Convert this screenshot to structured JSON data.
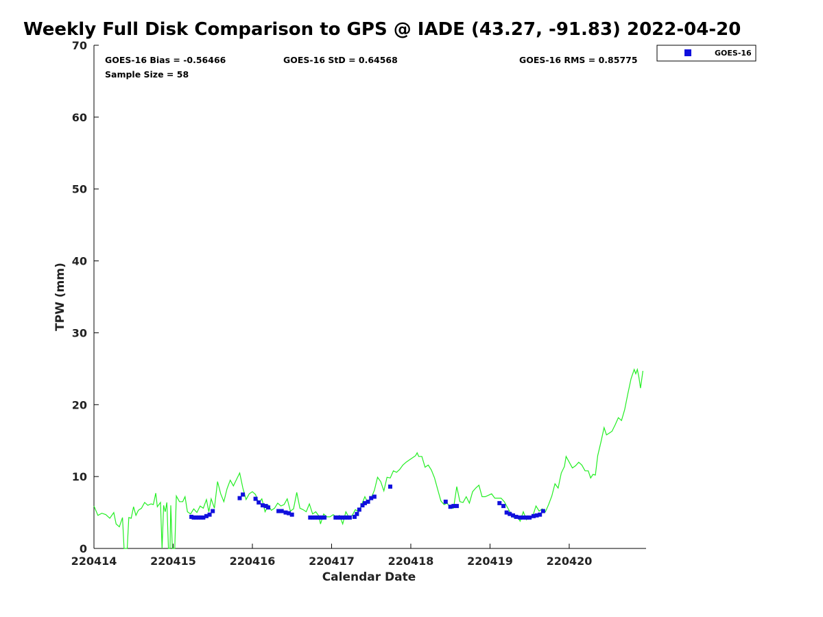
{
  "chart_data": {
    "type": "line",
    "title": "Weekly Full Disk Comparison to GPS @ IADE (43.27, -91.83) 2022-04-20",
    "xlabel": "Calendar Date",
    "ylabel": "TPW (mm)",
    "xlim": [
      220414,
      220421
    ],
    "ylim": [
      0,
      70
    ],
    "x_ticks": [
      220414,
      220415,
      220416,
      220417,
      220418,
      220419,
      220420
    ],
    "x_tick_labels": [
      "220414",
      "220415",
      "220416",
      "220417",
      "220418",
      "220419",
      "220420"
    ],
    "y_ticks": [
      0,
      10,
      20,
      30,
      40,
      50,
      60,
      70
    ],
    "y_tick_labels": [
      "0",
      "10",
      "20",
      "30",
      "40",
      "50",
      "60",
      "70"
    ],
    "grid": false,
    "legend_position": "top-right",
    "stats": {
      "bias": "GOES-16 Bias = -0.56466",
      "std": "GOES-16 StD = 0.64568",
      "rms": "GOES-16 RMS = 0.85775",
      "sample": "Sample Size = 58"
    },
    "colors": {
      "gps_line": "#22ee22",
      "goes_marker": "#1010dd"
    },
    "series": [
      {
        "type": "line",
        "values": [
          [
            220414.0,
            5.9
          ],
          [
            220414.05,
            4.6
          ],
          [
            220414.1,
            4.9
          ],
          [
            220414.15,
            4.7
          ],
          [
            220414.2,
            4.2
          ],
          [
            220414.25,
            5.0
          ],
          [
            220414.28,
            3.4
          ],
          [
            220414.32,
            3.0
          ],
          [
            220414.36,
            4.3
          ],
          [
            220414.38,
            0
          ],
          [
            220414.42,
            0
          ],
          [
            220414.44,
            4.3
          ],
          [
            220414.47,
            4.2
          ],
          [
            220414.5,
            5.8
          ],
          [
            220414.53,
            4.6
          ],
          [
            220414.56,
            5.3
          ],
          [
            220414.6,
            5.6
          ],
          [
            220414.64,
            6.4
          ],
          [
            220414.68,
            6.0
          ],
          [
            220414.72,
            6.2
          ],
          [
            220414.75,
            6.1
          ],
          [
            220414.78,
            7.7
          ],
          [
            220414.8,
            5.8
          ],
          [
            220414.84,
            6.4
          ],
          [
            220414.86,
            0
          ],
          [
            220414.88,
            6.0
          ],
          [
            220414.9,
            5.1
          ],
          [
            220414.92,
            6.4
          ],
          [
            220414.94,
            0
          ],
          [
            220414.96,
            0
          ],
          [
            220414.97,
            6.0
          ],
          [
            220414.99,
            0
          ],
          [
            220415.02,
            0
          ],
          [
            220415.04,
            7.3
          ],
          [
            220415.08,
            6.5
          ],
          [
            220415.12,
            6.5
          ],
          [
            220415.15,
            7.2
          ],
          [
            220415.18,
            5.1
          ],
          [
            220415.22,
            4.8
          ],
          [
            220415.26,
            5.5
          ],
          [
            220415.3,
            5.0
          ],
          [
            220415.34,
            5.9
          ],
          [
            220415.38,
            5.6
          ],
          [
            220415.42,
            6.8
          ],
          [
            220415.45,
            5.1
          ],
          [
            220415.48,
            6.9
          ],
          [
            220415.52,
            5.6
          ],
          [
            220415.56,
            9.3
          ],
          [
            220415.6,
            7.6
          ],
          [
            220415.64,
            6.5
          ],
          [
            220415.68,
            8.3
          ],
          [
            220415.72,
            9.5
          ],
          [
            220415.76,
            8.7
          ],
          [
            220415.8,
            9.6
          ],
          [
            220415.84,
            10.5
          ],
          [
            220415.88,
            8.4
          ],
          [
            220415.92,
            6.8
          ],
          [
            220415.96,
            7.6
          ],
          [
            220416.0,
            7.9
          ],
          [
            220416.04,
            7.5
          ],
          [
            220416.08,
            6.3
          ],
          [
            220416.12,
            6.9
          ],
          [
            220416.16,
            5.1
          ],
          [
            220416.2,
            6.0
          ],
          [
            220416.24,
            5.3
          ],
          [
            220416.28,
            5.6
          ],
          [
            220416.32,
            6.3
          ],
          [
            220416.36,
            5.9
          ],
          [
            220416.4,
            6.1
          ],
          [
            220416.44,
            6.9
          ],
          [
            220416.48,
            5.2
          ],
          [
            220416.52,
            5.5
          ],
          [
            220416.56,
            7.8
          ],
          [
            220416.6,
            5.6
          ],
          [
            220416.64,
            5.4
          ],
          [
            220416.68,
            5.1
          ],
          [
            220416.72,
            6.2
          ],
          [
            220416.76,
            4.8
          ],
          [
            220416.8,
            5.1
          ],
          [
            220416.84,
            4.5
          ],
          [
            220416.86,
            3.4
          ],
          [
            220416.9,
            4.8
          ],
          [
            220416.94,
            4.4
          ],
          [
            220416.98,
            4.4
          ],
          [
            220417.02,
            4.7
          ],
          [
            220417.06,
            4.4
          ],
          [
            220417.1,
            4.6
          ],
          [
            220417.14,
            3.4
          ],
          [
            220417.18,
            5.1
          ],
          [
            220417.22,
            4.3
          ],
          [
            220417.26,
            4.6
          ],
          [
            220417.3,
            5.4
          ],
          [
            220417.34,
            5.1
          ],
          [
            220417.38,
            6.1
          ],
          [
            220417.42,
            7.2
          ],
          [
            220417.46,
            6.3
          ],
          [
            220417.5,
            7.0
          ],
          [
            220417.54,
            8.1
          ],
          [
            220417.58,
            9.9
          ],
          [
            220417.62,
            9.3
          ],
          [
            220417.66,
            8.0
          ],
          [
            220417.7,
            9.9
          ],
          [
            220417.74,
            9.8
          ],
          [
            220417.78,
            10.8
          ],
          [
            220417.82,
            10.6
          ],
          [
            220417.86,
            11.0
          ],
          [
            220417.9,
            11.6
          ],
          [
            220417.94,
            12.0
          ],
          [
            220417.98,
            12.3
          ],
          [
            220418.02,
            12.6
          ],
          [
            220418.06,
            12.9
          ],
          [
            220418.08,
            13.3
          ],
          [
            220418.1,
            12.8
          ],
          [
            220418.14,
            12.8
          ],
          [
            220418.18,
            11.3
          ],
          [
            220418.22,
            11.6
          ],
          [
            220418.26,
            10.9
          ],
          [
            220418.3,
            9.8
          ],
          [
            220418.34,
            8.2
          ],
          [
            220418.38,
            6.6
          ],
          [
            220418.42,
            6.1
          ],
          [
            220418.46,
            6.3
          ],
          [
            220418.5,
            5.6
          ],
          [
            220418.54,
            5.6
          ],
          [
            220418.58,
            8.6
          ],
          [
            220418.62,
            6.5
          ],
          [
            220418.66,
            6.4
          ],
          [
            220418.7,
            7.2
          ],
          [
            220418.74,
            6.3
          ],
          [
            220418.78,
            7.9
          ],
          [
            220418.82,
            8.4
          ],
          [
            220418.86,
            8.8
          ],
          [
            220418.9,
            7.2
          ],
          [
            220418.94,
            7.2
          ],
          [
            220418.98,
            7.4
          ],
          [
            220419.02,
            7.6
          ],
          [
            220419.06,
            7.0
          ],
          [
            220419.1,
            7.0
          ],
          [
            220419.14,
            7.0
          ],
          [
            220419.18,
            6.5
          ],
          [
            220419.22,
            5.7
          ],
          [
            220419.26,
            4.9
          ],
          [
            220419.3,
            4.3
          ],
          [
            220419.34,
            4.5
          ],
          [
            220419.38,
            3.8
          ],
          [
            220419.42,
            5.1
          ],
          [
            220419.46,
            4.0
          ],
          [
            220419.5,
            4.5
          ],
          [
            220419.54,
            4.5
          ],
          [
            220419.58,
            5.9
          ],
          [
            220419.62,
            5.2
          ],
          [
            220419.66,
            5.5
          ],
          [
            220419.7,
            5.1
          ],
          [
            220419.74,
            6.1
          ],
          [
            220419.78,
            7.3
          ],
          [
            220419.82,
            9.0
          ],
          [
            220419.86,
            8.4
          ],
          [
            220419.9,
            10.5
          ],
          [
            220419.94,
            11.4
          ],
          [
            220419.96,
            12.8
          ],
          [
            220420.0,
            12.0
          ],
          [
            220420.04,
            11.2
          ],
          [
            220420.08,
            11.5
          ],
          [
            220420.12,
            12.0
          ],
          [
            220420.16,
            11.6
          ],
          [
            220420.2,
            10.8
          ],
          [
            220420.24,
            10.8
          ],
          [
            220420.27,
            9.8
          ],
          [
            220420.3,
            10.3
          ],
          [
            220420.33,
            10.2
          ],
          [
            220420.36,
            12.9
          ],
          [
            220420.4,
            14.8
          ],
          [
            220420.44,
            16.8
          ],
          [
            220420.47,
            15.8
          ],
          [
            220420.5,
            16.0
          ],
          [
            220420.54,
            16.3
          ],
          [
            220420.58,
            17.2
          ],
          [
            220420.62,
            18.2
          ],
          [
            220420.66,
            17.8
          ],
          [
            220420.7,
            19.3
          ],
          [
            220420.74,
            21.5
          ],
          [
            220420.78,
            23.6
          ],
          [
            220420.82,
            24.9
          ],
          [
            220420.84,
            24.3
          ],
          [
            220420.86,
            24.9
          ],
          [
            220420.88,
            23.8
          ],
          [
            220420.9,
            22.3
          ],
          [
            220420.93,
            24.7
          ]
        ]
      },
      {
        "name": "GOES-16",
        "type": "scatter",
        "values": [
          [
            220415.23,
            4.4
          ],
          [
            220415.26,
            4.3
          ],
          [
            220415.29,
            4.3
          ],
          [
            220415.32,
            4.3
          ],
          [
            220415.35,
            4.3
          ],
          [
            220415.38,
            4.3
          ],
          [
            220415.42,
            4.5
          ],
          [
            220415.46,
            4.7
          ],
          [
            220415.5,
            5.2
          ],
          [
            220415.84,
            7.0
          ],
          [
            220415.88,
            7.5
          ],
          [
            220416.04,
            6.9
          ],
          [
            220416.08,
            6.4
          ],
          [
            220416.13,
            6.0
          ],
          [
            220416.17,
            5.9
          ],
          [
            220416.2,
            5.7
          ],
          [
            220416.33,
            5.2
          ],
          [
            220416.37,
            5.2
          ],
          [
            220416.42,
            5.0
          ],
          [
            220416.46,
            4.9
          ],
          [
            220416.5,
            4.7
          ],
          [
            220416.73,
            4.3
          ],
          [
            220416.76,
            4.3
          ],
          [
            220416.79,
            4.3
          ],
          [
            220416.82,
            4.3
          ],
          [
            220416.85,
            4.3
          ],
          [
            220416.88,
            4.3
          ],
          [
            220416.91,
            4.3
          ],
          [
            220417.05,
            4.3
          ],
          [
            220417.08,
            4.3
          ],
          [
            220417.11,
            4.3
          ],
          [
            220417.14,
            4.3
          ],
          [
            220417.17,
            4.3
          ],
          [
            220417.2,
            4.3
          ],
          [
            220417.23,
            4.3
          ],
          [
            220417.29,
            4.4
          ],
          [
            220417.32,
            4.8
          ],
          [
            220417.35,
            5.4
          ],
          [
            220417.39,
            6.0
          ],
          [
            220417.42,
            6.3
          ],
          [
            220417.46,
            6.5
          ],
          [
            220417.5,
            7.0
          ],
          [
            220417.54,
            7.2
          ],
          [
            220417.74,
            8.6
          ],
          [
            220418.44,
            6.5
          ],
          [
            220418.5,
            5.8
          ],
          [
            220418.54,
            5.9
          ],
          [
            220418.58,
            5.9
          ],
          [
            220419.12,
            6.3
          ],
          [
            220419.17,
            5.9
          ],
          [
            220419.21,
            5.0
          ],
          [
            220419.25,
            4.8
          ],
          [
            220419.29,
            4.6
          ],
          [
            220419.33,
            4.4
          ],
          [
            220419.38,
            4.3
          ],
          [
            220419.42,
            4.3
          ],
          [
            220419.46,
            4.3
          ],
          [
            220419.5,
            4.3
          ],
          [
            220419.55,
            4.5
          ],
          [
            220419.59,
            4.6
          ],
          [
            220419.63,
            4.7
          ],
          [
            220419.67,
            5.2
          ]
        ]
      }
    ]
  }
}
